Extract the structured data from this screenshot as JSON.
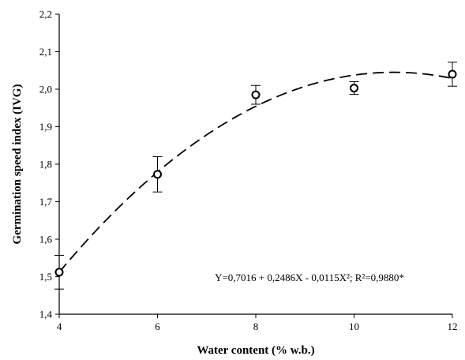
{
  "chart_data": {
    "type": "scatter",
    "title": "",
    "xlabel": "Water content (% w.b.)",
    "ylabel": "Germination speed index (IVG)",
    "xlim": [
      4,
      12
    ],
    "ylim": [
      1.4,
      2.2
    ],
    "x_ticks": [
      "4",
      "6",
      "8",
      "10",
      "12"
    ],
    "y_ticks": [
      "1,4",
      "1,5",
      "1,6",
      "1,7",
      "1,8",
      "1,9",
      "2,0",
      "2,1",
      "2,2"
    ],
    "grid": false,
    "series": [
      {
        "x": [
          4,
          6,
          8,
          10,
          12
        ],
        "y": [
          1.512,
          1.773,
          1.985,
          2.003,
          2.04
        ],
        "error": [
          0.045,
          0.047,
          0.025,
          0.017,
          0.032
        ],
        "marker": "open-circle"
      }
    ],
    "fit": {
      "equation": "Y=0,7016 + 0,2486X - 0,0115X²; R²=0,9880*",
      "coefficients": [
        0.7016,
        0.2486,
        -0.0115
      ],
      "style": "dashed"
    }
  }
}
